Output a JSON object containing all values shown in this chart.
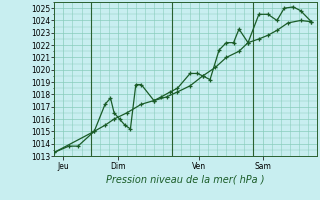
{
  "xlabel": "Pression niveau de la mer( hPa )",
  "background_color": "#c8eef0",
  "plot_bg_color": "#c8eef0",
  "grid_color": "#88ccbb",
  "line_color": "#1a5c28",
  "vline_color": "#2a6030",
  "ylim": [
    1013,
    1025.5
  ],
  "yticks": [
    1013,
    1014,
    1015,
    1016,
    1017,
    1018,
    1019,
    1020,
    1021,
    1022,
    1023,
    1024,
    1025
  ],
  "day_labels": [
    "Jeu",
    "Dim",
    "Ven",
    "Sam"
  ],
  "day_positions": [
    0.5,
    3.5,
    8.0,
    11.5
  ],
  "vline_positions": [
    2.0,
    6.5,
    11.0
  ],
  "series1": [
    [
      0.0,
      1013.3
    ],
    [
      0.8,
      1013.8
    ],
    [
      1.3,
      1013.8
    ],
    [
      2.2,
      1015.0
    ],
    [
      2.8,
      1017.2
    ],
    [
      3.1,
      1017.7
    ],
    [
      3.3,
      1016.5
    ],
    [
      3.6,
      1016.0
    ],
    [
      3.9,
      1015.5
    ],
    [
      4.2,
      1015.2
    ],
    [
      4.5,
      1018.8
    ],
    [
      4.8,
      1018.8
    ],
    [
      5.5,
      1017.5
    ],
    [
      5.9,
      1017.8
    ],
    [
      6.4,
      1018.2
    ],
    [
      6.8,
      1018.5
    ],
    [
      7.5,
      1019.7
    ],
    [
      7.9,
      1019.7
    ],
    [
      8.2,
      1019.5
    ],
    [
      8.6,
      1019.2
    ],
    [
      9.1,
      1021.6
    ],
    [
      9.5,
      1022.2
    ],
    [
      9.9,
      1022.2
    ],
    [
      10.2,
      1023.3
    ],
    [
      10.7,
      1022.2
    ],
    [
      11.3,
      1024.5
    ],
    [
      11.8,
      1024.5
    ],
    [
      12.3,
      1024.0
    ],
    [
      12.7,
      1025.0
    ],
    [
      13.2,
      1025.1
    ],
    [
      13.6,
      1024.8
    ],
    [
      14.2,
      1023.9
    ]
  ],
  "series2": [
    [
      0.0,
      1013.3
    ],
    [
      2.2,
      1015.0
    ],
    [
      2.8,
      1015.5
    ],
    [
      3.3,
      1016.0
    ],
    [
      4.0,
      1016.5
    ],
    [
      4.8,
      1017.2
    ],
    [
      5.5,
      1017.5
    ],
    [
      6.2,
      1017.8
    ],
    [
      6.8,
      1018.2
    ],
    [
      7.5,
      1018.7
    ],
    [
      8.2,
      1019.5
    ],
    [
      8.9,
      1020.2
    ],
    [
      9.5,
      1021.0
    ],
    [
      10.2,
      1021.5
    ],
    [
      10.7,
      1022.2
    ],
    [
      11.3,
      1022.5
    ],
    [
      11.8,
      1022.8
    ],
    [
      12.3,
      1023.2
    ],
    [
      12.9,
      1023.8
    ],
    [
      13.6,
      1024.0
    ],
    [
      14.2,
      1023.9
    ]
  ],
  "xlim": [
    0,
    14.5
  ],
  "figwidth": 3.2,
  "figheight": 2.0,
  "dpi": 100
}
